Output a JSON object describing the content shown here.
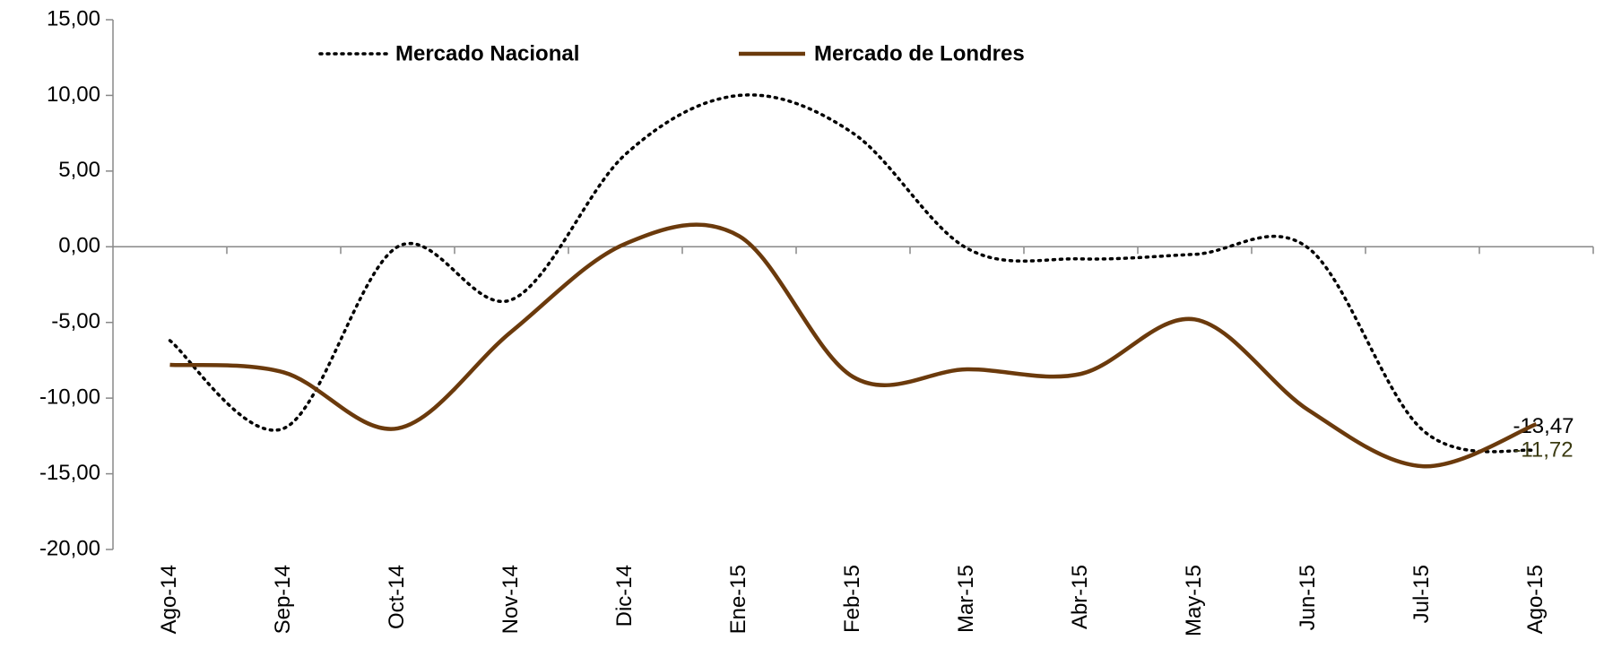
{
  "chart_data": {
    "type": "line",
    "categories": [
      "Ago-14",
      "Sep-14",
      "Oct-14",
      "Nov-14",
      "Dic-14",
      "Ene-15",
      "Feb-15",
      "Mar-15",
      "Abr-15",
      "May-15",
      "Jun-15",
      "Jul-15",
      "Ago-15"
    ],
    "series": [
      {
        "name": "Mercado Nacional",
        "color": "#000000",
        "dash": "dotted",
        "values": [
          -6.2,
          -12.0,
          0.0,
          -3.5,
          6.1,
          10.0,
          7.5,
          -0.1,
          -0.8,
          -0.5,
          -0.1,
          -12.1,
          -13.47
        ],
        "value_labels": [
          null,
          null,
          null,
          null,
          null,
          null,
          null,
          null,
          null,
          null,
          null,
          null,
          "-13,47"
        ],
        "label_color": "#000000"
      },
      {
        "name": "Mercado de Londres",
        "color": "#6b3a0c",
        "dash": "solid",
        "values": [
          -7.8,
          -8.3,
          -12.0,
          -5.6,
          0.2,
          0.7,
          -8.6,
          -8.1,
          -8.4,
          -4.8,
          -10.8,
          -14.5,
          -11.72
        ],
        "value_labels": [
          null,
          null,
          null,
          null,
          null,
          null,
          null,
          null,
          null,
          null,
          null,
          null,
          "-11,72"
        ],
        "label_color": "#3b3b12"
      }
    ],
    "ylim": [
      -20,
      15
    ],
    "yticks": [
      {
        "value": -20,
        "label": "-20,00"
      },
      {
        "value": -15,
        "label": "-15,00"
      },
      {
        "value": -10,
        "label": "-10,00"
      },
      {
        "value": -5,
        "label": "-5,00"
      },
      {
        "value": 0,
        "label": "0,00"
      },
      {
        "value": 5,
        "label": "5,00"
      },
      {
        "value": 10,
        "label": "10,00"
      },
      {
        "value": 15,
        "label": "15,00"
      }
    ],
    "grid": false,
    "legend": "top",
    "smooth": true
  }
}
